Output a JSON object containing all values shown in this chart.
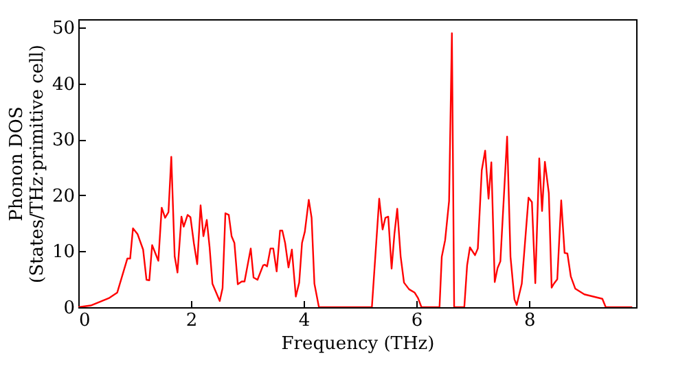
{
  "chart_data": {
    "type": "line",
    "xlabel": "Frequency (THz)",
    "ylabel": "Phonon DOS\n(States/THz·primitive cell)",
    "xlim": [
      0,
      9.9
    ],
    "ylim": [
      0,
      51.5
    ],
    "xticks": [
      0,
      2,
      4,
      6,
      8
    ],
    "yticks": [
      0,
      10,
      20,
      30,
      40,
      50
    ],
    "grid": false,
    "x": [
      0,
      0.22,
      0.54,
      0.69,
      0.87,
      0.92,
      0.97,
      1.05,
      1.15,
      1.21,
      1.26,
      1.31,
      1.42,
      1.48,
      1.54,
      1.6,
      1.65,
      1.71,
      1.76,
      1.83,
      1.87,
      1.94,
      1.99,
      2.05,
      2.11,
      2.17,
      2.22,
      2.28,
      2.33,
      2.38,
      2.51,
      2.56,
      2.61,
      2.67,
      2.72,
      2.77,
      2.83,
      2.9,
      2.95,
      3.06,
      3.11,
      3.18,
      3.28,
      3.31,
      3.35,
      3.41,
      3.46,
      3.52,
      3.58,
      3.62,
      3.67,
      3.73,
      3.79,
      3.86,
      3.92,
      3.97,
      4.02,
      4.09,
      4.14,
      4.19,
      4.27,
      5.21,
      5.34,
      5.4,
      5.45,
      5.5,
      5.56,
      5.61,
      5.66,
      5.72,
      5.78,
      5.87,
      5.97,
      6.03,
      6.09,
      6.41,
      6.45,
      6.51,
      6.58,
      6.63,
      6.67,
      6.85,
      6.9,
      6.95,
      7.04,
      7.09,
      7.16,
      7.22,
      7.28,
      7.33,
      7.39,
      7.44,
      7.49,
      7.61,
      7.67,
      7.74,
      7.78,
      7.87,
      7.99,
      8.05,
      8.11,
      8.18,
      8.23,
      8.28,
      8.35,
      8.4,
      8.44,
      8.5,
      8.57,
      8.63,
      8.68,
      8.74,
      8.82,
      8.98,
      9.3,
      9.36,
      9.83
    ],
    "series": [
      {
        "color": "#ff0000",
        "values": [
          0,
          0.3,
          1.6,
          2.6,
          8.7,
          8.7,
          14.1,
          13.1,
          10.3,
          4.9,
          4.8,
          11.1,
          8.3,
          17.8,
          16,
          17,
          26.9,
          9.1,
          6.2,
          16.2,
          14.4,
          16.5,
          16.1,
          11.5,
          7.7,
          18.2,
          12.7,
          15.6,
          10.7,
          4.2,
          1.1,
          3.4,
          16.8,
          16.5,
          12.7,
          11.5,
          4.1,
          4.6,
          4.6,
          10.5,
          5.3,
          4.9,
          7.5,
          7.6,
          7.3,
          10.5,
          10.5,
          6.4,
          13.7,
          13.7,
          11.5,
          7.1,
          10.3,
          1.9,
          4.4,
          11.5,
          13.5,
          19.2,
          16,
          4.2,
          0,
          0,
          19.4,
          13.9,
          16,
          16.2,
          6.9,
          13.1,
          17.6,
          9.1,
          4.4,
          3.2,
          2.6,
          1.6,
          0,
          0,
          9,
          12,
          19,
          49,
          0,
          0,
          7.5,
          10.7,
          9.3,
          10.5,
          24.5,
          28,
          19.4,
          25.9,
          4.5,
          7,
          8.2,
          30.5,
          9,
          1.4,
          0.4,
          4.2,
          19.6,
          18.8,
          4.3,
          26.6,
          17.2,
          26,
          20.4,
          3.5,
          4.2,
          5,
          19.1,
          9.7,
          9.6,
          5.5,
          3.3,
          2.3,
          1.5,
          0,
          0
        ]
      }
    ]
  }
}
